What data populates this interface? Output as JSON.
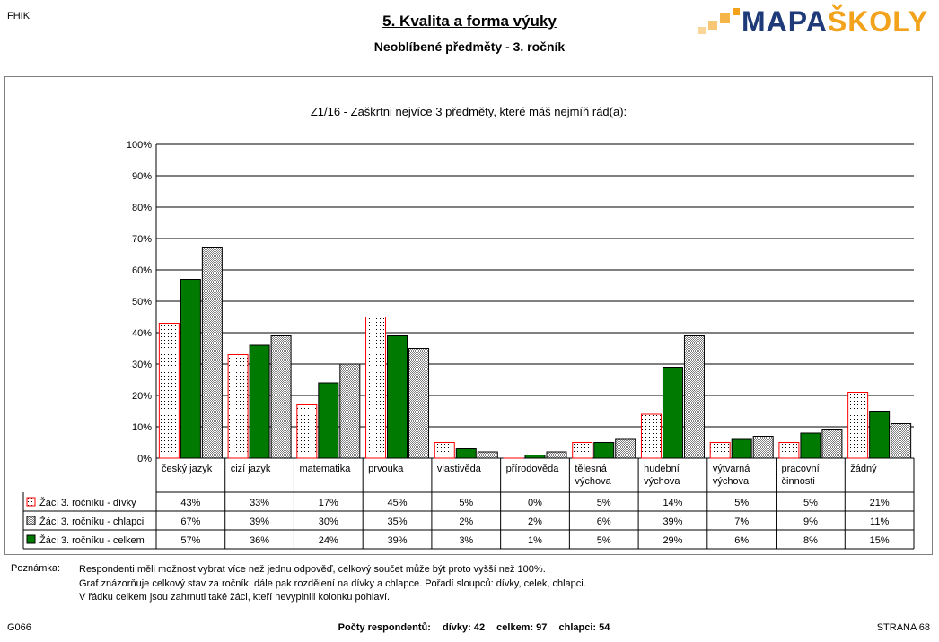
{
  "header": {
    "code": "FHIK",
    "title": "5. Kvalita a forma výuky",
    "subtitle": "Neoblíbené předměty -  3. ročník",
    "logo_part1": "MAPA",
    "logo_part2": "ŠKOLY"
  },
  "chart_data": {
    "type": "bar",
    "title": "Z1/16 - Zaškrtni nejvíce 3 předměty, které máš nejmíň rád(a):",
    "categories": [
      [
        "český jazyk"
      ],
      [
        "cizí jazyk"
      ],
      [
        "matematika"
      ],
      [
        "prvouka"
      ],
      [
        "vlastivěda"
      ],
      [
        "přírodověda"
      ],
      [
        "tělesná",
        "výchova"
      ],
      [
        "hudební",
        "výchova"
      ],
      [
        "výtvarná",
        "výchova"
      ],
      [
        "pracovní",
        "činnosti"
      ],
      [
        "žádný"
      ]
    ],
    "series": [
      {
        "name": "Žáci 3. ročníku - dívky",
        "values": [
          43,
          33,
          17,
          45,
          5,
          0,
          5,
          14,
          5,
          5,
          21
        ],
        "color": "#ffffff",
        "border": "#ff0000",
        "pattern": "dots"
      },
      {
        "name": "Žáci 3. ročníku - chlapci",
        "values": [
          67,
          39,
          30,
          35,
          2,
          2,
          6,
          39,
          7,
          9,
          11
        ],
        "color": "#c8c8c8",
        "border": "#000000",
        "pattern": "checker"
      },
      {
        "name": "Žáci 3. ročníku - celkem",
        "values": [
          57,
          36,
          24,
          39,
          3,
          1,
          5,
          29,
          6,
          8,
          15
        ],
        "color": "#007a00",
        "border": "#000000",
        "pattern": "solid"
      }
    ],
    "bar_order": [
      0,
      2,
      1
    ],
    "ylim": [
      0,
      100
    ],
    "yticks": [
      "0%",
      "10%",
      "20%",
      "30%",
      "40%",
      "50%",
      "60%",
      "70%",
      "80%",
      "90%",
      "100%"
    ],
    "grid": true,
    "legend": "data-table"
  },
  "notes": {
    "label": "Poznámka:",
    "lines": [
      "Respondenti měli možnost vybrat více než jednu odpověď, celkový součet může být proto vyšší než 100%.",
      "Graf znázorňuje celkový stav za ročník, dále pak rozdělení na dívky a chlapce. Pořadí sloupců: dívky, celek, chlapci.",
      "V řádku celkem jsou zahrnuti také žáci, kteří nevyplnili kolonku pohlaví."
    ]
  },
  "footer": {
    "left": "G066",
    "counts_label": "Počty respondentů:",
    "girls": "dívky: 42",
    "total": "celkem: 97",
    "boys": "chlapci: 54",
    "page": "STRANA  68"
  }
}
